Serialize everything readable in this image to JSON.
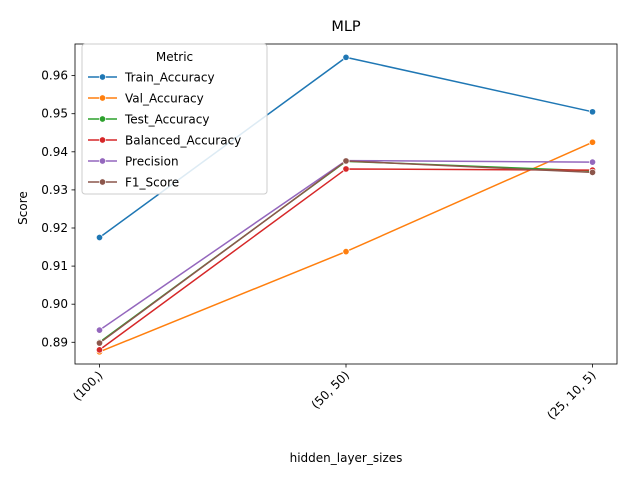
{
  "chart_data": {
    "type": "line",
    "title": "MLP",
    "xlabel": "hidden_layer_sizes",
    "ylabel": "Score",
    "categories": [
      "(100,)",
      "(50, 50)",
      "(25, 10, 5)"
    ],
    "yticks": [
      "0.89",
      "0.90",
      "0.91",
      "0.92",
      "0.93",
      "0.94",
      "0.95",
      "0.96"
    ],
    "ytick_values": [
      0.89,
      0.9,
      0.91,
      0.92,
      0.93,
      0.94,
      0.95,
      0.96
    ],
    "ylim": [
      0.8843,
      0.9683
    ],
    "grid": false,
    "legend": {
      "title": "Metric",
      "placement": "top-left"
    },
    "series": [
      {
        "name": "Train_Accuracy",
        "color": "#1f77b4",
        "values": [
          0.9175,
          0.9648,
          0.9505
        ]
      },
      {
        "name": "Val_Accuracy",
        "color": "#ff7f0e",
        "values": [
          0.8875,
          0.9138,
          0.9425
        ]
      },
      {
        "name": "Test_Accuracy",
        "color": "#2ca02c",
        "values": [
          0.89,
          0.9375,
          0.935
        ]
      },
      {
        "name": "Balanced_Accuracy",
        "color": "#d62728",
        "values": [
          0.888,
          0.9355,
          0.9352
        ]
      },
      {
        "name": "Precision",
        "color": "#9467bd",
        "values": [
          0.8932,
          0.9377,
          0.9373
        ]
      },
      {
        "name": "F1_Score",
        "color": "#8c564b",
        "values": [
          0.8898,
          0.9376,
          0.9346
        ]
      }
    ]
  }
}
